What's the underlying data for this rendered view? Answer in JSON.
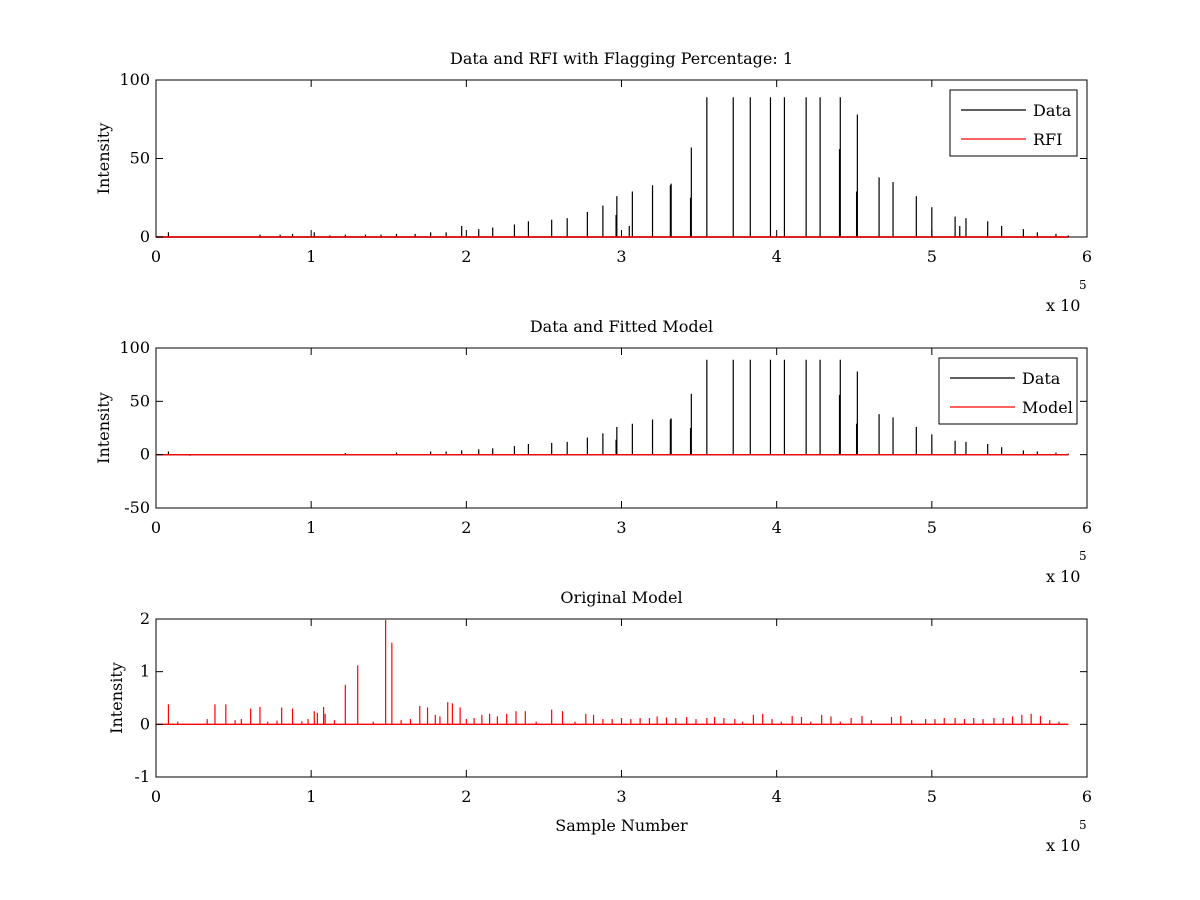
{
  "chart_data": [
    {
      "type": "line",
      "title": "Data and RFI with Flagging Percentage: 1",
      "xlabel": "",
      "ylabel": "Intensity",
      "xlim": [
        0,
        600000
      ],
      "ylim": [
        0,
        100
      ],
      "xticks": [
        0,
        1,
        2,
        3,
        4,
        5,
        6
      ],
      "yticks": [
        0,
        50,
        100
      ],
      "x_exponent_base": "x 10",
      "x_exponent": "5",
      "legend": {
        "placement": "top-right",
        "entries": [
          {
            "label": "Data",
            "color": "#000000"
          },
          {
            "label": "RFI",
            "color": "#ff0000"
          }
        ]
      },
      "series": [
        {
          "name": "Data",
          "color": "#000000",
          "baseline": 0,
          "end_x": 588000,
          "spikes": [
            [
              8000,
              3
            ],
            [
              67000,
              1.5
            ],
            [
              80000,
              1.5
            ],
            [
              88000,
              2
            ],
            [
              102000,
              3
            ],
            [
              112000,
              1
            ],
            [
              122000,
              1.5
            ],
            [
              135000,
              1.5
            ],
            [
              145000,
              1.5
            ],
            [
              155000,
              2
            ],
            [
              167000,
              2
            ],
            [
              177000,
              3
            ],
            [
              187000,
              3
            ],
            [
              197000,
              7
            ],
            [
              208000,
              5
            ],
            [
              217000,
              6
            ],
            [
              231000,
              8
            ],
            [
              240000,
              10
            ],
            [
              255000,
              11
            ],
            [
              265000,
              12
            ],
            [
              278000,
              16
            ],
            [
              288000,
              20
            ],
            [
              297000,
              26
            ],
            [
              296500,
              14
            ],
            [
              305000,
              7
            ],
            [
              307000,
              29
            ],
            [
              320000,
              33
            ],
            [
              332000,
              34
            ],
            [
              331500,
              33
            ],
            [
              345000,
              57
            ],
            [
              344500,
              25
            ],
            [
              355000,
              89
            ],
            [
              372000,
              89
            ],
            [
              383000,
              89
            ],
            [
              396000,
              89
            ],
            [
              405000,
              89
            ],
            [
              419000,
              89
            ],
            [
              428000,
              89
            ],
            [
              441000,
              89
            ],
            [
              440500,
              56
            ],
            [
              452000,
              78
            ],
            [
              451500,
              29
            ],
            [
              466000,
              38
            ],
            [
              475000,
              35
            ],
            [
              490000,
              26
            ],
            [
              500000,
              19
            ],
            [
              515000,
              13
            ],
            [
              518000,
              7
            ],
            [
              522000,
              12
            ],
            [
              536000,
              10
            ],
            [
              545000,
              7
            ],
            [
              559000,
              5
            ],
            [
              568000,
              3
            ],
            [
              580000,
              2
            ],
            [
              588000,
              1
            ]
          ]
        },
        {
          "name": "RFI",
          "color": "#ff0000",
          "baseline": 0,
          "end_x": 588000,
          "spikes": []
        }
      ]
    },
    {
      "type": "line",
      "title": "Data and Fitted Model",
      "xlabel": "",
      "ylabel": "Intensity",
      "xlim": [
        0,
        600000
      ],
      "ylim": [
        -50,
        100
      ],
      "xticks": [
        0,
        1,
        2,
        3,
        4,
        5,
        6
      ],
      "yticks": [
        -50,
        0,
        50,
        100
      ],
      "x_exponent_base": "x 10",
      "x_exponent": "5",
      "legend": {
        "placement": "top-right",
        "entries": [
          {
            "label": "Data",
            "color": "#000000"
          },
          {
            "label": "Model",
            "color": "#ff0000"
          }
        ]
      },
      "series": [
        {
          "name": "Data",
          "color": "#000000",
          "baseline": 0,
          "end_x": 588000,
          "spikes": [
            [
              8000,
              3
            ],
            [
              22000,
              -1
            ],
            [
              122000,
              1.5
            ],
            [
              155000,
              2
            ],
            [
              177000,
              3
            ],
            [
              187000,
              3
            ],
            [
              197000,
              4
            ],
            [
              208000,
              5
            ],
            [
              217000,
              6
            ],
            [
              231000,
              8
            ],
            [
              240000,
              10
            ],
            [
              255000,
              11
            ],
            [
              265000,
              12
            ],
            [
              278000,
              16
            ],
            [
              288000,
              20
            ],
            [
              297000,
              26
            ],
            [
              296500,
              14
            ],
            [
              307000,
              29
            ],
            [
              320000,
              33
            ],
            [
              332000,
              34
            ],
            [
              331500,
              33
            ],
            [
              345000,
              57
            ],
            [
              344500,
              25
            ],
            [
              355000,
              89
            ],
            [
              372000,
              89
            ],
            [
              383000,
              89
            ],
            [
              396000,
              89
            ],
            [
              405000,
              89
            ],
            [
              419000,
              89
            ],
            [
              428000,
              89
            ],
            [
              441000,
              89
            ],
            [
              440500,
              56
            ],
            [
              452000,
              78
            ],
            [
              451500,
              29
            ],
            [
              466000,
              38
            ],
            [
              475000,
              35
            ],
            [
              490000,
              26
            ],
            [
              500000,
              19
            ],
            [
              515000,
              13
            ],
            [
              522000,
              12
            ],
            [
              536000,
              10
            ],
            [
              545000,
              7
            ],
            [
              559000,
              4
            ],
            [
              568000,
              3
            ],
            [
              580000,
              2
            ],
            [
              588000,
              1
            ]
          ]
        },
        {
          "name": "Model",
          "color": "#ff0000",
          "baseline": 0,
          "end_x": 588000,
          "spikes": []
        }
      ]
    },
    {
      "type": "line",
      "title": "Original Model",
      "xlabel": "Sample Number",
      "ylabel": "Intensity",
      "xlim": [
        0,
        600000
      ],
      "ylim": [
        -1,
        2
      ],
      "xticks": [
        0,
        1,
        2,
        3,
        4,
        5,
        6
      ],
      "yticks": [
        -1,
        0,
        1,
        2
      ],
      "x_exponent_base": "x 10",
      "x_exponent": "5",
      "legend": null,
      "series": [
        {
          "name": "",
          "color": "#ff0000",
          "baseline": 0,
          "end_x": 588000,
          "spikes": [
            [
              8000,
              0.38
            ],
            [
              14000,
              0.05
            ],
            [
              33000,
              0.1
            ],
            [
              38000,
              0.38
            ],
            [
              45000,
              0.38
            ],
            [
              51000,
              0.08
            ],
            [
              55000,
              0.1
            ],
            [
              61000,
              0.3
            ],
            [
              67000,
              0.33
            ],
            [
              72000,
              0.05
            ],
            [
              78000,
              0.07
            ],
            [
              81000,
              0.32
            ],
            [
              88000,
              0.3
            ],
            [
              94000,
              0.06
            ],
            [
              98000,
              0.1
            ],
            [
              102000,
              0.25
            ],
            [
              104000,
              0.22
            ],
            [
              108000,
              0.33
            ],
            [
              109000,
              0.2
            ],
            [
              115000,
              0.08
            ],
            [
              122000,
              0.75
            ],
            [
              130000,
              1.12
            ],
            [
              140000,
              0.05
            ],
            [
              148000,
              1.98
            ],
            [
              152000,
              1.55
            ],
            [
              158000,
              0.08
            ],
            [
              164000,
              0.1
            ],
            [
              170000,
              0.35
            ],
            [
              175000,
              0.32
            ],
            [
              180000,
              0.18
            ],
            [
              183000,
              0.15
            ],
            [
              188000,
              0.42
            ],
            [
              191000,
              0.4
            ],
            [
              196000,
              0.32
            ],
            [
              200000,
              0.1
            ],
            [
              205000,
              0.12
            ],
            [
              210000,
              0.18
            ],
            [
              215000,
              0.2
            ],
            [
              220000,
              0.15
            ],
            [
              226000,
              0.2
            ],
            [
              232000,
              0.25
            ],
            [
              238000,
              0.25
            ],
            [
              245000,
              0.05
            ],
            [
              255000,
              0.28
            ],
            [
              262000,
              0.25
            ],
            [
              270000,
              0.05
            ],
            [
              277000,
              0.2
            ],
            [
              282000,
              0.18
            ],
            [
              288000,
              0.1
            ],
            [
              294000,
              0.1
            ],
            [
              300000,
              0.12
            ],
            [
              306000,
              0.1
            ],
            [
              312000,
              0.12
            ],
            [
              318000,
              0.12
            ],
            [
              323000,
              0.15
            ],
            [
              329000,
              0.13
            ],
            [
              335000,
              0.12
            ],
            [
              342000,
              0.14
            ],
            [
              348000,
              0.1
            ],
            [
              355000,
              0.12
            ],
            [
              360000,
              0.14
            ],
            [
              366000,
              0.12
            ],
            [
              373000,
              0.1
            ],
            [
              378000,
              0.05
            ],
            [
              385000,
              0.18
            ],
            [
              391000,
              0.2
            ],
            [
              397000,
              0.1
            ],
            [
              403000,
              0.05
            ],
            [
              410000,
              0.16
            ],
            [
              416000,
              0.14
            ],
            [
              422000,
              0.05
            ],
            [
              429000,
              0.18
            ],
            [
              435000,
              0.15
            ],
            [
              441000,
              0.05
            ],
            [
              448000,
              0.12
            ],
            [
              455000,
              0.16
            ],
            [
              461000,
              0.08
            ],
            [
              474000,
              0.14
            ],
            [
              480000,
              0.16
            ],
            [
              487000,
              0.08
            ],
            [
              496000,
              0.1
            ],
            [
              502000,
              0.1
            ],
            [
              508000,
              0.12
            ],
            [
              515000,
              0.12
            ],
            [
              521000,
              0.1
            ],
            [
              527000,
              0.12
            ],
            [
              533000,
              0.1
            ],
            [
              540000,
              0.12
            ],
            [
              546000,
              0.12
            ],
            [
              552000,
              0.15
            ],
            [
              558000,
              0.18
            ],
            [
              564000,
              0.2
            ],
            [
              570000,
              0.16
            ],
            [
              576000,
              0.08
            ],
            [
              582000,
              0.05
            ]
          ]
        }
      ]
    }
  ]
}
